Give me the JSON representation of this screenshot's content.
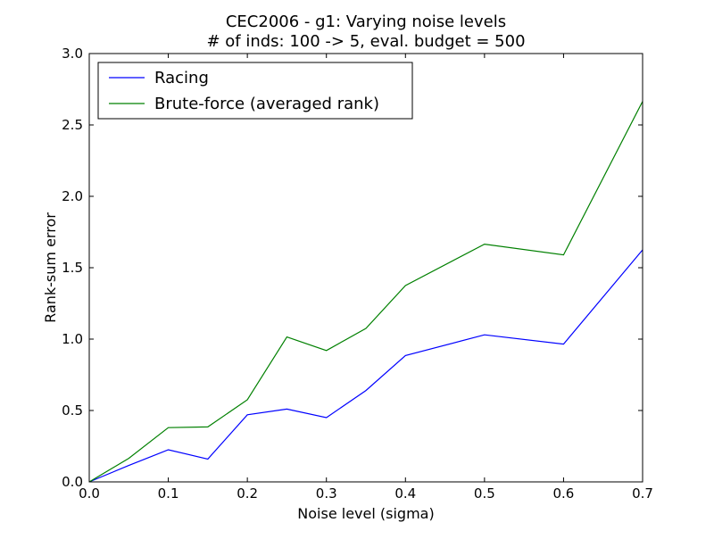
{
  "chart_data": {
    "type": "line",
    "title": "CEC2006 - g1: Varying noise levels",
    "subtitle": "# of inds: 100 -> 5, eval. budget = 500",
    "xlabel": "Noise level (sigma)",
    "ylabel": "Rank-sum error",
    "xlim": [
      0.0,
      0.7
    ],
    "ylim": [
      0.0,
      3.0
    ],
    "xticks": [
      "0.0",
      "0.1",
      "0.2",
      "0.3",
      "0.4",
      "0.5",
      "0.6",
      "0.7"
    ],
    "yticks": [
      "0.0",
      "0.5",
      "1.0",
      "1.5",
      "2.0",
      "2.5",
      "3.0"
    ],
    "grid": false,
    "legend_position": "top-left",
    "x": [
      0.0,
      0.05,
      0.1,
      0.15,
      0.2,
      0.25,
      0.3,
      0.35,
      0.4,
      0.5,
      0.6,
      0.7
    ],
    "series": [
      {
        "name": "Racing",
        "color": "#0000ff",
        "values": [
          0.0,
          0.115,
          0.225,
          0.16,
          0.47,
          0.51,
          0.45,
          0.64,
          0.885,
          1.03,
          0.965,
          1.625
        ]
      },
      {
        "name": "Brute-force (averaged rank)",
        "color": "#008000",
        "values": [
          0.0,
          0.165,
          0.38,
          0.385,
          0.575,
          1.015,
          0.92,
          1.075,
          1.375,
          1.665,
          1.59,
          2.665
        ]
      }
    ]
  }
}
